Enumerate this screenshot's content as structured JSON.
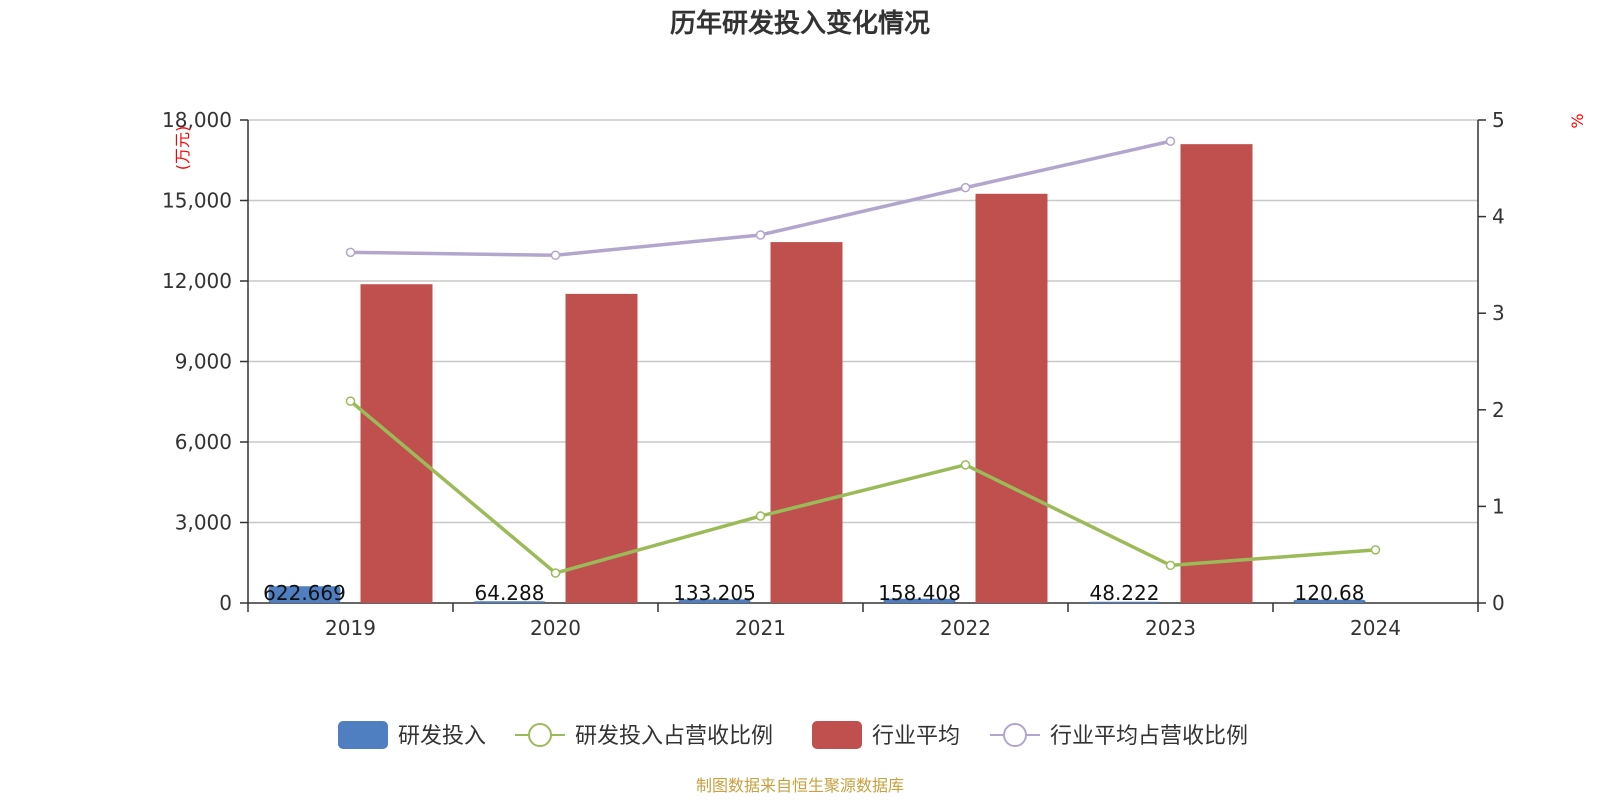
{
  "chart_data": {
    "type": "bar",
    "title": "历年研发投入变化情况",
    "categories": [
      "2019",
      "2020",
      "2021",
      "2022",
      "2023",
      "2024"
    ],
    "y_left": {
      "unit": "(万元)",
      "ylim": [
        0,
        18000
      ],
      "ticks": [
        "0",
        "3,000",
        "6,000",
        "9,000",
        "12,000",
        "15,000",
        "18,000"
      ]
    },
    "y_right": {
      "unit": "%",
      "ylim": [
        0,
        5
      ],
      "ticks": [
        "0",
        "1",
        "2",
        "3",
        "4",
        "5"
      ]
    },
    "grid": true,
    "legend_position": "bottom",
    "series": [
      {
        "name": "研发投入",
        "type": "bar",
        "axis": "left",
        "color": "#4f7fc0",
        "values": [
          622.669,
          64.288,
          133.205,
          158.408,
          48.222,
          120.68
        ],
        "labels": [
          "622.669",
          "64.288",
          "133.205",
          "158.408",
          "48.222",
          "120.68"
        ]
      },
      {
        "name": "研发投入占营收比例",
        "type": "line",
        "axis": "right",
        "color": "#9bbb59",
        "values": [
          2.09,
          0.31,
          0.9,
          1.43,
          0.39,
          0.55
        ]
      },
      {
        "name": "行业平均",
        "type": "bar",
        "axis": "left",
        "color": "#c0504d",
        "values": [
          11880,
          11520,
          13450,
          15250,
          17100,
          null
        ]
      },
      {
        "name": "行业平均占营收比例",
        "type": "line",
        "axis": "right",
        "color": "#b3a6cc",
        "values": [
          3.63,
          3.6,
          3.81,
          4.3,
          4.78,
          null
        ]
      }
    ]
  },
  "footer": {
    "source": "制图数据来自恒生聚源数据库"
  }
}
